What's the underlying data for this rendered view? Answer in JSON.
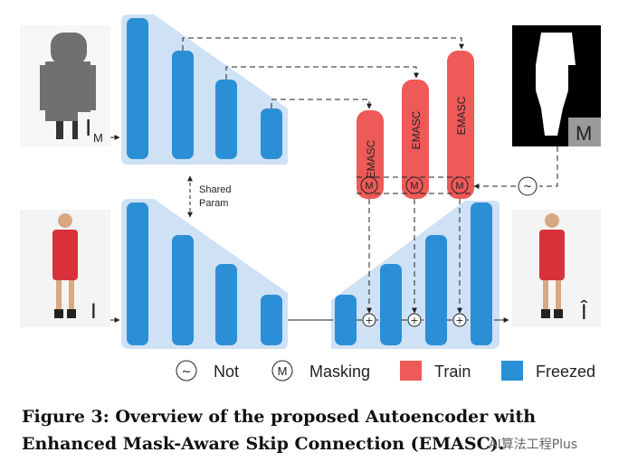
{
  "images": {
    "masked_input_label": "I",
    "masked_input_subscript": "M",
    "mask_label": "M",
    "input_label": "I",
    "output_label": "Î"
  },
  "emasc_label": "EMASC",
  "masking_symbol": "M",
  "not_symbol": "~",
  "sum_symbol": "+",
  "shared_param": [
    "Shared",
    "Param"
  ],
  "legend": {
    "not": "Not",
    "masking": "Masking",
    "train": "Train",
    "freezed": "Freezed"
  },
  "colors": {
    "train": "#ee5a58",
    "freezed": "#2b8fd6",
    "panel": "#cfe1f5"
  },
  "caption": "Figure 3: Overview of the proposed Autoencoder with Enhanced Mask-Aware Skip Connection (EMASC).",
  "watermark": "AI算法工程Plus"
}
